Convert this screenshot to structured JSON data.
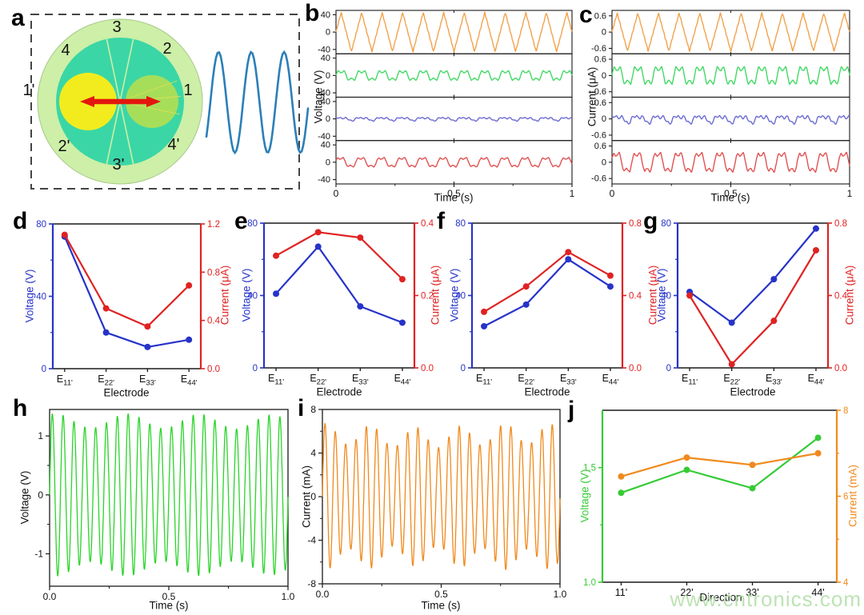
{
  "watermark": "www.cntronics.com",
  "panel_labels": {
    "a": "a",
    "b": "b",
    "c": "c",
    "d": "d",
    "e": "e",
    "f": "f",
    "g": "g",
    "h": "h",
    "i": "i",
    "j": "j"
  },
  "schematic": {
    "electrode_labels": [
      "3",
      "2",
      "4",
      "1'",
      "1",
      "2'",
      "4'",
      "3'"
    ],
    "outer_color": "#cdefa8",
    "inner_color": "#3bd6a6",
    "left_disc_color": "#f2ec1e",
    "right_disc_color": "#a6de5a",
    "arrow_color": "#e3170d",
    "wave_color": "#2b7fb8",
    "border_color": "#444444"
  },
  "chart_data": [
    {
      "panel": "b",
      "type": "stacked-line",
      "xlabel": "Time (s)",
      "ylabel": "Voltage (V)",
      "xlim": [
        0,
        1
      ],
      "xticks": [
        0,
        0.5,
        1
      ],
      "xtick_labels": [
        "0",
        "0.5",
        "1"
      ],
      "x_minor": [
        0.25,
        0.75
      ],
      "sub_ylim": [
        -50,
        50
      ],
      "sub_yticks": [
        40,
        0,
        -40
      ],
      "sub_ytick_labels": [
        "40",
        "0",
        "-40"
      ],
      "series": [
        {
          "name": "voltage-trace-1",
          "color": "#f2a24e",
          "shape": "triangle",
          "cycles": 11.5,
          "amplitude": 45
        },
        {
          "name": "voltage-trace-2",
          "color": "#43d965",
          "shape": "clipped",
          "cycles": 11.5,
          "amplitude": 11
        },
        {
          "name": "voltage-trace-3",
          "color": "#6b6bd4",
          "shape": "jagged",
          "cycles": 11.5,
          "amplitude": 6
        },
        {
          "name": "voltage-trace-4",
          "color": "#e25252",
          "shape": "humps",
          "cycles": 11.5,
          "amplitude": 11
        }
      ]
    },
    {
      "panel": "c",
      "type": "stacked-line",
      "xlabel": "Time (s)",
      "ylabel": "Current (μA)",
      "xlim": [
        0,
        1
      ],
      "xticks": [
        0,
        0.5,
        1
      ],
      "xtick_labels": [
        "0",
        "0.5",
        "1"
      ],
      "x_minor": [
        0.25,
        0.75
      ],
      "sub_ylim": [
        -0.8,
        0.8
      ],
      "sub_yticks": [
        0.6,
        0,
        -0.6
      ],
      "sub_ytick_labels": [
        "0.6",
        "0",
        "-0.6"
      ],
      "series": [
        {
          "name": "current-trace-1",
          "color": "#f2a24e",
          "shape": "triangle",
          "cycles": 11.5,
          "amplitude": 0.7
        },
        {
          "name": "current-trace-2",
          "color": "#43d965",
          "shape": "clipped",
          "cycles": 11.5,
          "amplitude": 0.32
        },
        {
          "name": "current-trace-3",
          "color": "#6b6bd4",
          "shape": "jagged",
          "cycles": 11.5,
          "amplitude": 0.22
        },
        {
          "name": "current-trace-4",
          "color": "#e25252",
          "shape": "humps",
          "cycles": 11.5,
          "amplitude": 0.36
        }
      ]
    },
    {
      "panel": "d",
      "type": "dual-line",
      "xlabel": "Electrode",
      "categories": [
        {
          "base": "E",
          "sub": "11'"
        },
        {
          "base": "E",
          "sub": "22'"
        },
        {
          "base": "E",
          "sub": "33'"
        },
        {
          "base": "E",
          "sub": "44'"
        }
      ],
      "left": {
        "label": "Voltage (V)",
        "color": "#2633c9",
        "ylim": [
          0,
          80
        ],
        "ticks": [
          0,
          40,
          80
        ],
        "tick_labels": [
          "0",
          "40",
          "80"
        ],
        "values": [
          73,
          20,
          12,
          16
        ]
      },
      "right": {
        "label": "Current (μA)",
        "color": "#e02222",
        "ylim": [
          0,
          1.2
        ],
        "ticks": [
          0,
          0.4,
          0.8,
          1.2
        ],
        "tick_labels": [
          "0.0",
          "0.4",
          "0.8",
          "1.2"
        ],
        "values": [
          1.11,
          0.5,
          0.35,
          0.69
        ]
      }
    },
    {
      "panel": "e",
      "type": "dual-line",
      "xlabel": "Electrode",
      "categories": [
        {
          "base": "E",
          "sub": "11'"
        },
        {
          "base": "E",
          "sub": "22'"
        },
        {
          "base": "E",
          "sub": "33'"
        },
        {
          "base": "E",
          "sub": "44'"
        }
      ],
      "left": {
        "label": "Voltage (V)",
        "color": "#2633c9",
        "ylim": [
          0,
          80
        ],
        "ticks": [
          0,
          40,
          80
        ],
        "tick_labels": [
          "0",
          "40",
          "80"
        ],
        "values": [
          41,
          67,
          34,
          25
        ]
      },
      "right": {
        "label": "Current (μA)",
        "color": "#e02222",
        "ylim": [
          0,
          0.4
        ],
        "ticks": [
          0,
          0.2,
          0.4
        ],
        "tick_labels": [
          "0.0",
          "0.2",
          "0.4"
        ],
        "values": [
          0.31,
          0.375,
          0.36,
          0.245
        ]
      }
    },
    {
      "panel": "f",
      "type": "dual-line",
      "xlabel": "Electrode",
      "categories": [
        {
          "base": "E",
          "sub": "11'"
        },
        {
          "base": "E",
          "sub": "22'"
        },
        {
          "base": "E",
          "sub": "33'"
        },
        {
          "base": "E",
          "sub": "44'"
        }
      ],
      "left": {
        "label": "Voltage (V)",
        "color": "#2633c9",
        "ylim": [
          0,
          80
        ],
        "ticks": [
          0,
          40,
          80
        ],
        "tick_labels": [
          "0",
          "40",
          "80"
        ],
        "values": [
          23,
          35,
          60,
          45
        ]
      },
      "right": {
        "label": "Current (μA)",
        "color": "#e02222",
        "ylim": [
          0,
          0.8
        ],
        "ticks": [
          0,
          0.4,
          0.8
        ],
        "tick_labels": [
          "0.0",
          "0.4",
          "0.8"
        ],
        "values": [
          0.31,
          0.45,
          0.64,
          0.51
        ]
      }
    },
    {
      "panel": "g",
      "type": "dual-line",
      "xlabel": "Electrode",
      "categories": [
        {
          "base": "E",
          "sub": "11'"
        },
        {
          "base": "E",
          "sub": "22'"
        },
        {
          "base": "E",
          "sub": "33'"
        },
        {
          "base": "E",
          "sub": "44'"
        }
      ],
      "left": {
        "label": "Voltage (V)",
        "color": "#2633c9",
        "ylim": [
          0,
          80
        ],
        "ticks": [
          0,
          40,
          80
        ],
        "tick_labels": [
          "0",
          "40",
          "80"
        ],
        "values": [
          42,
          25,
          49,
          77
        ]
      },
      "right": {
        "label": "Current (μA)",
        "color": "#e02222",
        "ylim": [
          0,
          0.8
        ],
        "ticks": [
          0,
          0.4,
          0.8
        ],
        "tick_labels": [
          "0.0",
          "0.4",
          "0.8"
        ],
        "values": [
          0.4,
          0.02,
          0.26,
          0.65
        ]
      }
    },
    {
      "panel": "h",
      "type": "waveform",
      "xlabel": "Time (s)",
      "ylabel": "Voltage (V)",
      "xticks": [
        0,
        0.5,
        1
      ],
      "xtick_labels": [
        "0.0",
        "0.5",
        "1.0"
      ],
      "x_minor": [
        0.25,
        0.75
      ],
      "ylim": [
        -1.55,
        1.45
      ],
      "yticks": [
        1,
        0,
        -1
      ],
      "ytick_labels": [
        "1",
        "0",
        "-1"
      ],
      "y_minor": [
        0.5,
        -0.5
      ],
      "series": [
        {
          "name": "voltage-wave",
          "color": "#2bd42b",
          "cycles": 22,
          "amplitude": 1.22,
          "am_depth": 0.1,
          "am_cycles": 3.3
        }
      ]
    },
    {
      "panel": "i",
      "type": "waveform",
      "xlabel": "Time (s)",
      "ylabel": "Current (mA)",
      "xticks": [
        0,
        0.5,
        1
      ],
      "xtick_labels": [
        "0.0",
        "0.5",
        "1.0"
      ],
      "x_minor": [
        0.25,
        0.75
      ],
      "ylim": [
        -8,
        8
      ],
      "yticks": [
        8,
        4,
        0,
        -4,
        -8
      ],
      "ytick_labels": [
        "8",
        "4",
        "0",
        "-4",
        "-8"
      ],
      "y_minor": [
        6,
        2,
        -2,
        -6
      ],
      "series": [
        {
          "name": "current-wave",
          "color": "#f08a1e",
          "cycles": 23,
          "amplitude": 5.6,
          "am_depth": 0.17,
          "am_cycles": 5.3
        }
      ]
    },
    {
      "panel": "j",
      "type": "dual-line",
      "xlabel": "Direction",
      "categories": [
        "11'",
        "22'",
        "33'",
        "44'"
      ],
      "left": {
        "label": "Voltage (V)",
        "color": "#36cb36",
        "ylim": [
          1.0,
          1.75
        ],
        "ticks": [
          1.0,
          1.5
        ],
        "tick_labels": [
          "1.0",
          "1.5"
        ],
        "values": [
          1.39,
          1.49,
          1.41,
          1.63
        ]
      },
      "right": {
        "label": "Current (mA)",
        "color": "#f08a1e",
        "ylim": [
          4,
          8
        ],
        "ticks": [
          4,
          6,
          8
        ],
        "tick_labels": [
          "4",
          "6",
          "8"
        ],
        "minor_ticks": [
          5,
          7
        ],
        "values": [
          6.46,
          6.9,
          6.73,
          7.0
        ]
      }
    }
  ]
}
